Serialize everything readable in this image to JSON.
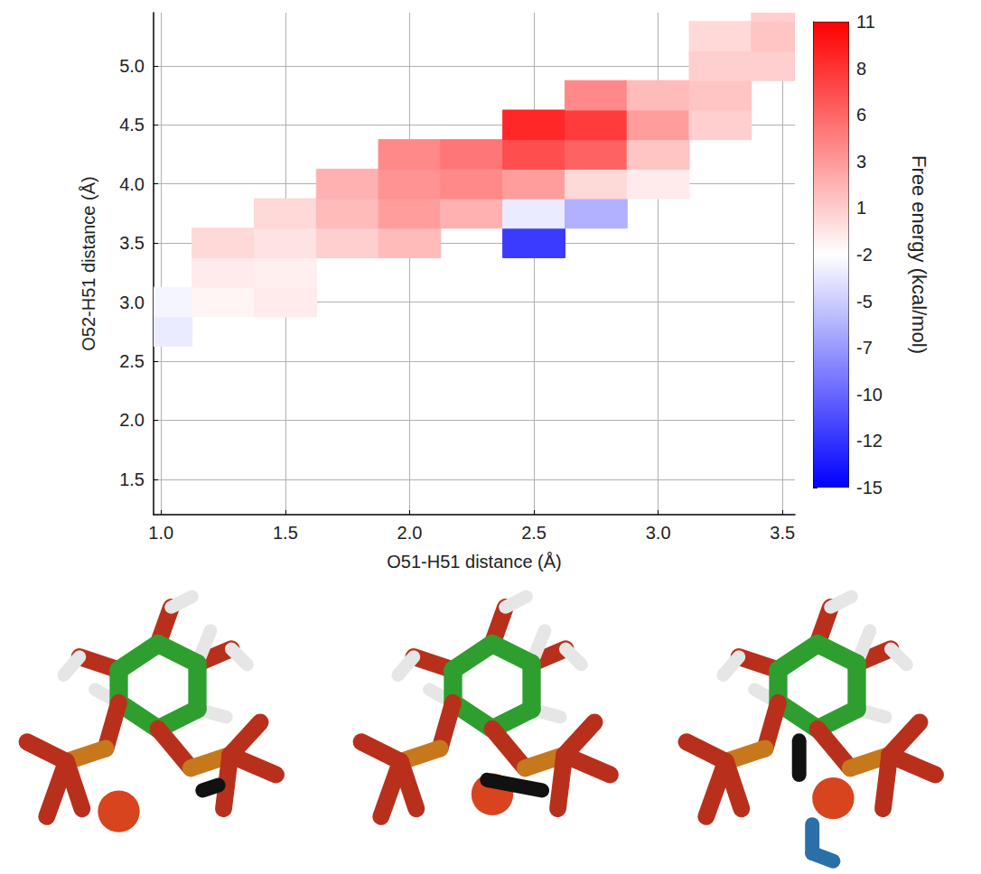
{
  "chart_data": {
    "type": "heatmap",
    "x_label": "O51-H51 distance (Å)",
    "y_label": "O52-H51 distance (Å)",
    "x": [
      1.0,
      1.25,
      1.5,
      1.75,
      2.0,
      2.25,
      2.5,
      2.75,
      3.0,
      3.25,
      3.5
    ],
    "y": [
      2.75,
      3.0,
      3.25,
      3.5,
      3.75,
      4.0,
      4.25,
      4.5,
      4.75,
      5.0,
      5.25,
      5.5
    ],
    "cells": [
      [
        -3,
        null,
        null,
        null,
        null,
        null,
        null,
        null,
        null,
        null,
        null
      ],
      [
        -2.5,
        -1.5,
        -1,
        null,
        null,
        null,
        null,
        null,
        null,
        null,
        null
      ],
      [
        null,
        -1,
        -1.2,
        null,
        null,
        null,
        null,
        null,
        null,
        null,
        null
      ],
      [
        null,
        0,
        -0.5,
        0.5,
        1.5,
        null,
        -12,
        null,
        null,
        null,
        null
      ],
      [
        null,
        null,
        0,
        1.5,
        3,
        2,
        -3,
        -6,
        null,
        null,
        null
      ],
      [
        null,
        null,
        null,
        2,
        3.5,
        4,
        3,
        0,
        -1,
        null,
        null
      ],
      [
        null,
        null,
        null,
        null,
        4,
        5,
        7,
        6,
        1,
        null,
        null
      ],
      [
        null,
        null,
        null,
        null,
        null,
        null,
        9,
        8,
        3,
        0.5,
        null
      ],
      [
        null,
        null,
        null,
        null,
        null,
        null,
        null,
        4,
        1.5,
        1,
        null
      ],
      [
        null,
        null,
        null,
        null,
        null,
        null,
        null,
        null,
        null,
        0.5,
        0.5
      ],
      [
        null,
        null,
        null,
        null,
        null,
        null,
        null,
        null,
        null,
        0,
        1
      ],
      [
        null,
        null,
        null,
        null,
        null,
        null,
        null,
        null,
        null,
        null,
        0.5
      ]
    ],
    "xlim": [
      0.97,
      3.55
    ],
    "ylim": [
      1.2,
      5.45
    ],
    "xticks": [
      {
        "value": 1,
        "label": "1.0"
      },
      1.5,
      {
        "value": 2,
        "label": "2.0"
      },
      2.5,
      {
        "value": 3,
        "label": "3.0"
      },
      3.5
    ],
    "yticks": [
      1.5,
      {
        "value": 2,
        "label": "2.0"
      },
      2.5,
      {
        "value": 3,
        "label": "3.0"
      },
      3.5,
      {
        "value": 4,
        "label": "4.0"
      },
      4.5,
      {
        "value": 5,
        "label": "5.0"
      }
    ],
    "grid": true,
    "colorbar": {
      "label": "Free energy (kcal/mol)",
      "lim": [
        -15,
        11
      ],
      "ticks": [
        -15,
        {
          "value": -12.4,
          "label": "-12"
        },
        {
          "value": -9.8,
          "label": "-10"
        },
        {
          "value": -7.2,
          "label": "-7"
        },
        {
          "value": -4.6,
          "label": "-5"
        },
        -2,
        {
          "value": 0.6,
          "label": "1"
        },
        {
          "value": 3.2,
          "label": "3"
        },
        {
          "value": 5.8,
          "label": "6"
        },
        {
          "value": 8.4,
          "label": "8"
        },
        11
      ],
      "colors": [
        "#0000ff",
        "#ffffff",
        "#ff0000"
      ]
    }
  }
}
